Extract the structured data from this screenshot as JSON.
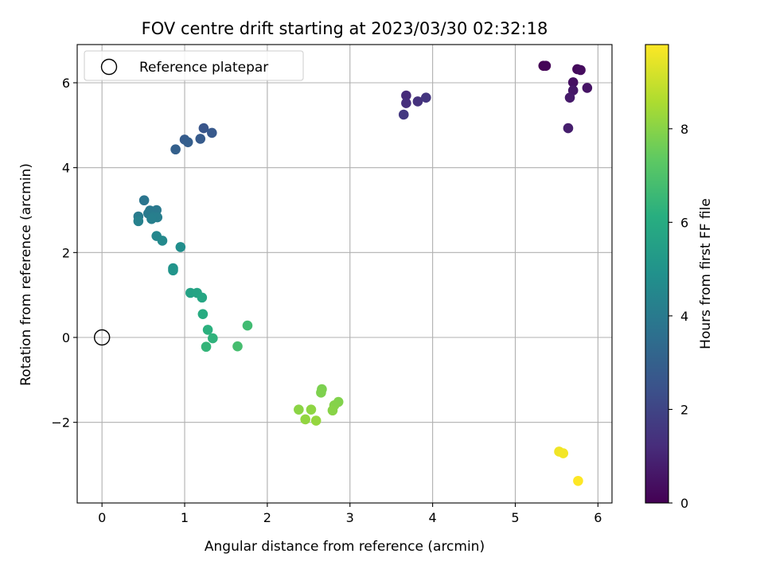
{
  "chart_data": {
    "type": "scatter",
    "title": "FOV centre drift starting at 2023/03/30 02:32:18",
    "xlabel": "Angular distance from reference (arcmin)",
    "ylabel": "Rotation from reference (arcmin)",
    "xlim": [
      -0.3,
      6.17
    ],
    "ylim": [
      -3.9,
      6.9
    ],
    "xticks": [
      0,
      1,
      2,
      3,
      4,
      5,
      6
    ],
    "xtick_labels": [
      "0",
      "1",
      "2",
      "3",
      "4",
      "5",
      "6"
    ],
    "yticks": [
      -2,
      0,
      2,
      4,
      6
    ],
    "ytick_labels": [
      "−2",
      "0",
      "2",
      "4",
      "6"
    ],
    "grid": true,
    "legend": {
      "placement": "top-left",
      "entries": [
        {
          "label": "Reference platepar",
          "marker": "open-circle"
        }
      ]
    },
    "reference_point": {
      "x": 0,
      "y": 0
    },
    "colorbar": {
      "label": "Hours from first FF file",
      "colormap": "viridis",
      "range": [
        0,
        9.8
      ],
      "ticks": [
        0,
        2,
        4,
        6,
        8
      ],
      "tick_labels": [
        "0",
        "2",
        "4",
        "6",
        "8"
      ]
    },
    "points": [
      {
        "x": 5.34,
        "y": 6.4,
        "hours": 0.0
      },
      {
        "x": 5.37,
        "y": 6.4,
        "hours": 0.1
      },
      {
        "x": 5.75,
        "y": 6.32,
        "hours": 0.2
      },
      {
        "x": 5.79,
        "y": 6.3,
        "hours": 0.3
      },
      {
        "x": 5.7,
        "y": 6.01,
        "hours": 0.4
      },
      {
        "x": 5.87,
        "y": 5.88,
        "hours": 0.5
      },
      {
        "x": 5.7,
        "y": 5.82,
        "hours": 0.6
      },
      {
        "x": 5.66,
        "y": 5.65,
        "hours": 0.7
      },
      {
        "x": 5.64,
        "y": 4.93,
        "hours": 0.8
      },
      {
        "x": 3.68,
        "y": 5.7,
        "hours": 1.2
      },
      {
        "x": 3.68,
        "y": 5.52,
        "hours": 1.3
      },
      {
        "x": 3.82,
        "y": 5.56,
        "hours": 1.4
      },
      {
        "x": 3.92,
        "y": 5.65,
        "hours": 1.5
      },
      {
        "x": 3.65,
        "y": 5.25,
        "hours": 1.6
      },
      {
        "x": 1.23,
        "y": 4.93,
        "hours": 2.6
      },
      {
        "x": 1.33,
        "y": 4.82,
        "hours": 2.7
      },
      {
        "x": 1.19,
        "y": 4.68,
        "hours": 2.8
      },
      {
        "x": 1.0,
        "y": 4.66,
        "hours": 2.85
      },
      {
        "x": 1.04,
        "y": 4.6,
        "hours": 2.9
      },
      {
        "x": 0.89,
        "y": 4.43,
        "hours": 3.0
      },
      {
        "x": 0.51,
        "y": 3.23,
        "hours": 3.8
      },
      {
        "x": 0.58,
        "y": 2.99,
        "hours": 3.9
      },
      {
        "x": 0.66,
        "y": 3.0,
        "hours": 3.95
      },
      {
        "x": 0.56,
        "y": 2.92,
        "hours": 4.0
      },
      {
        "x": 0.44,
        "y": 2.85,
        "hours": 4.05
      },
      {
        "x": 0.62,
        "y": 2.84,
        "hours": 4.1
      },
      {
        "x": 0.67,
        "y": 2.83,
        "hours": 4.15
      },
      {
        "x": 0.6,
        "y": 2.79,
        "hours": 4.2
      },
      {
        "x": 0.44,
        "y": 2.74,
        "hours": 4.25
      },
      {
        "x": 0.66,
        "y": 2.39,
        "hours": 4.5
      },
      {
        "x": 0.73,
        "y": 2.28,
        "hours": 4.6
      },
      {
        "x": 0.95,
        "y": 2.13,
        "hours": 4.8
      },
      {
        "x": 0.86,
        "y": 1.63,
        "hours": 5.0
      },
      {
        "x": 0.86,
        "y": 1.58,
        "hours": 5.05
      },
      {
        "x": 1.07,
        "y": 1.05,
        "hours": 5.6
      },
      {
        "x": 1.15,
        "y": 1.05,
        "hours": 5.7
      },
      {
        "x": 1.21,
        "y": 0.94,
        "hours": 5.8
      },
      {
        "x": 1.22,
        "y": 0.55,
        "hours": 6.0
      },
      {
        "x": 1.28,
        "y": 0.18,
        "hours": 6.2
      },
      {
        "x": 1.34,
        "y": -0.02,
        "hours": 6.3
      },
      {
        "x": 1.26,
        "y": -0.22,
        "hours": 6.4
      },
      {
        "x": 1.76,
        "y": 0.28,
        "hours": 6.7
      },
      {
        "x": 1.64,
        "y": -0.21,
        "hours": 6.8
      },
      {
        "x": 2.66,
        "y": -1.22,
        "hours": 7.8
      },
      {
        "x": 2.65,
        "y": -1.3,
        "hours": 7.85
      },
      {
        "x": 2.86,
        "y": -1.52,
        "hours": 7.9
      },
      {
        "x": 2.81,
        "y": -1.6,
        "hours": 7.95
      },
      {
        "x": 2.79,
        "y": -1.72,
        "hours": 8.0
      },
      {
        "x": 2.38,
        "y": -1.7,
        "hours": 8.05
      },
      {
        "x": 2.53,
        "y": -1.7,
        "hours": 8.1
      },
      {
        "x": 2.46,
        "y": -1.93,
        "hours": 8.15
      },
      {
        "x": 2.59,
        "y": -1.96,
        "hours": 8.2
      },
      {
        "x": 5.53,
        "y": -2.69,
        "hours": 9.6
      },
      {
        "x": 5.58,
        "y": -2.73,
        "hours": 9.65
      },
      {
        "x": 5.76,
        "y": -3.38,
        "hours": 9.8
      }
    ]
  }
}
